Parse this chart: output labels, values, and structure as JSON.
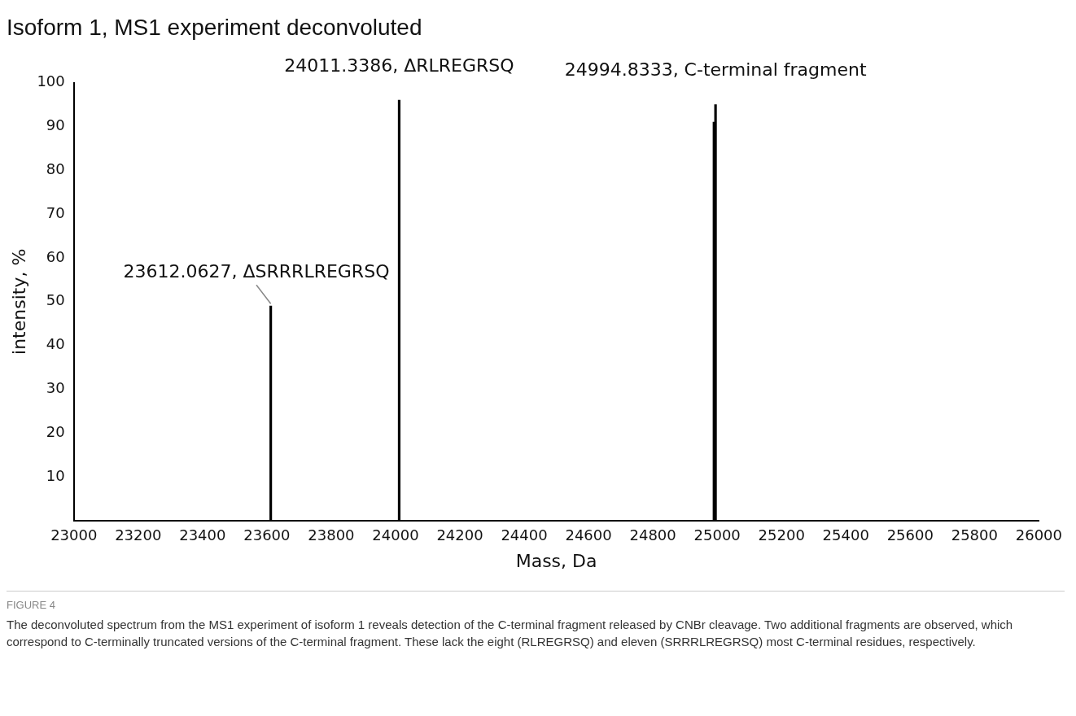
{
  "chart_data": {
    "type": "bar",
    "title": "Isoform 1, MS1 experiment deconvoluted",
    "xlabel": "Mass, Da",
    "ylabel": "intensity, %",
    "x": [
      23612.0627,
      24011.3386,
      24990,
      24994.8333
    ],
    "values": [
      49,
      96,
      91,
      95
    ],
    "color": "#000000",
    "xlim": [
      23000,
      26000
    ],
    "xticks": [
      23000,
      23200,
      23400,
      23600,
      23800,
      24000,
      24200,
      24400,
      24600,
      24800,
      25000,
      25200,
      25400,
      25600,
      25800,
      26000
    ],
    "ylim": [
      0,
      100
    ],
    "yticks": [
      10,
      20,
      30,
      40,
      50,
      60,
      70,
      80,
      90,
      100
    ],
    "grid": false,
    "legend": false,
    "annotations": [
      {
        "text": "23612.0627, ΔSRRRLREGRSQ",
        "x": 23612.0627,
        "y": 49
      },
      {
        "text": "24011.3386, ΔRLREGRSQ",
        "x": 24011.3386,
        "y": 96
      },
      {
        "text": "24994.8333, C-terminal fragment",
        "x": 24994.8333,
        "y": 95
      },
      "FIGURE 4",
      "The deconvoluted spectrum from the MS1 experiment of isoform 1 reveals detection of the C-terminal fragment released by CNBr cleavage. Two additional fragments are observed, which correspond to C-terminally truncated versions of the C-terminal fragment. These lack the eight (RLREGRSQ) and eleven (SRRRLREGRSQ) most C-terminal residues, respectively."
    ]
  }
}
